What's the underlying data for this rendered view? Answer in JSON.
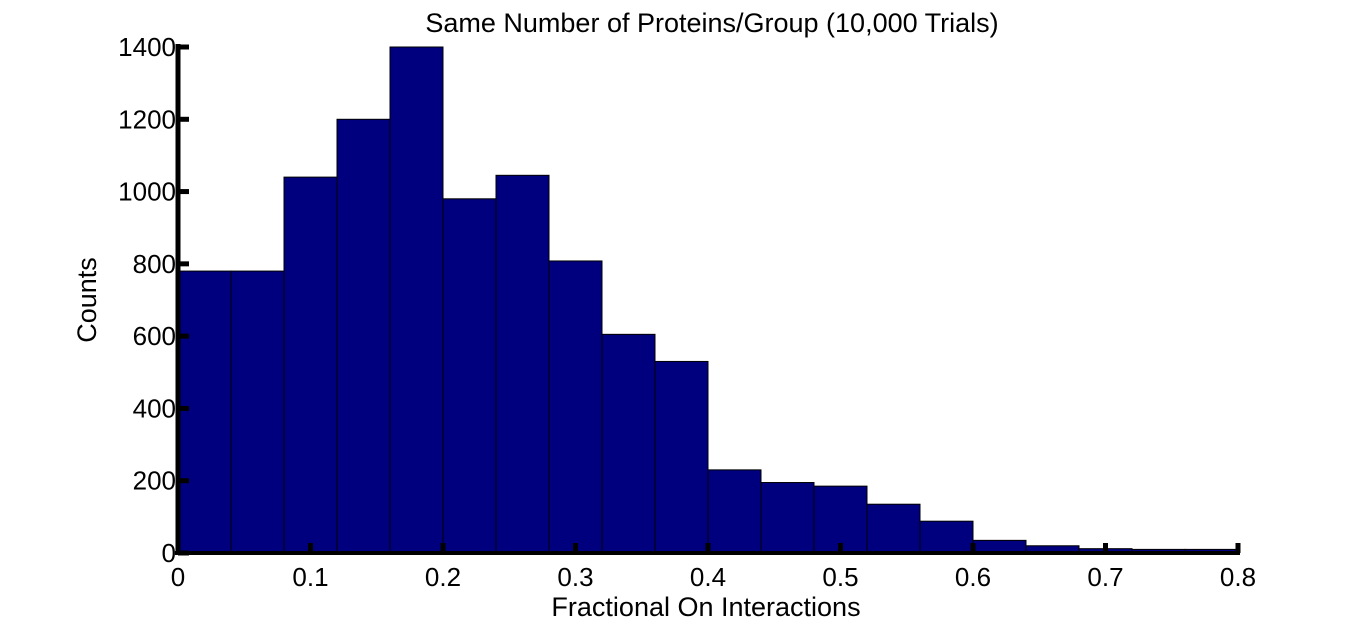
{
  "chart_data": {
    "type": "bar",
    "title": "Same Number of Proteins/Group (10,000 Trials)",
    "xlabel": "Fractional On Interactions",
    "ylabel": "Counts",
    "bin_width": 0.04,
    "bins": [
      {
        "x0": 0.0,
        "x1": 0.04,
        "value": 780
      },
      {
        "x0": 0.04,
        "x1": 0.08,
        "value": 780
      },
      {
        "x0": 0.08,
        "x1": 0.12,
        "value": 1040
      },
      {
        "x0": 0.12,
        "x1": 0.16,
        "value": 1200
      },
      {
        "x0": 0.16,
        "x1": 0.2,
        "value": 1400
      },
      {
        "x0": 0.2,
        "x1": 0.24,
        "value": 980
      },
      {
        "x0": 0.24,
        "x1": 0.28,
        "value": 1045
      },
      {
        "x0": 0.28,
        "x1": 0.32,
        "value": 808
      },
      {
        "x0": 0.32,
        "x1": 0.36,
        "value": 605
      },
      {
        "x0": 0.36,
        "x1": 0.4,
        "value": 530
      },
      {
        "x0": 0.4,
        "x1": 0.44,
        "value": 230
      },
      {
        "x0": 0.44,
        "x1": 0.48,
        "value": 195
      },
      {
        "x0": 0.48,
        "x1": 0.52,
        "value": 185
      },
      {
        "x0": 0.52,
        "x1": 0.56,
        "value": 135
      },
      {
        "x0": 0.56,
        "x1": 0.6,
        "value": 88
      },
      {
        "x0": 0.6,
        "x1": 0.64,
        "value": 35
      },
      {
        "x0": 0.64,
        "x1": 0.68,
        "value": 20
      },
      {
        "x0": 0.68,
        "x1": 0.72,
        "value": 12
      },
      {
        "x0": 0.72,
        "x1": 0.76,
        "value": 10
      },
      {
        "x0": 0.76,
        "x1": 0.8,
        "value": 10
      }
    ],
    "xlim": [
      0,
      0.8
    ],
    "ylim": [
      0,
      1400
    ],
    "x_ticks": [
      0,
      0.1,
      0.2,
      0.3,
      0.4,
      0.5,
      0.6,
      0.7,
      0.8
    ],
    "x_tick_labels": [
      "0",
      "0.1",
      "0.2",
      "0.3",
      "0.4",
      "0.5",
      "0.6",
      "0.7",
      "0.8"
    ],
    "y_ticks": [
      0,
      200,
      400,
      600,
      800,
      1000,
      1200,
      1400
    ],
    "y_tick_labels": [
      "0",
      "200",
      "400",
      "600",
      "800",
      "1000",
      "1200",
      "1400"
    ],
    "bar_color": "#00007f",
    "edge_color": "#000000",
    "grid": false
  }
}
